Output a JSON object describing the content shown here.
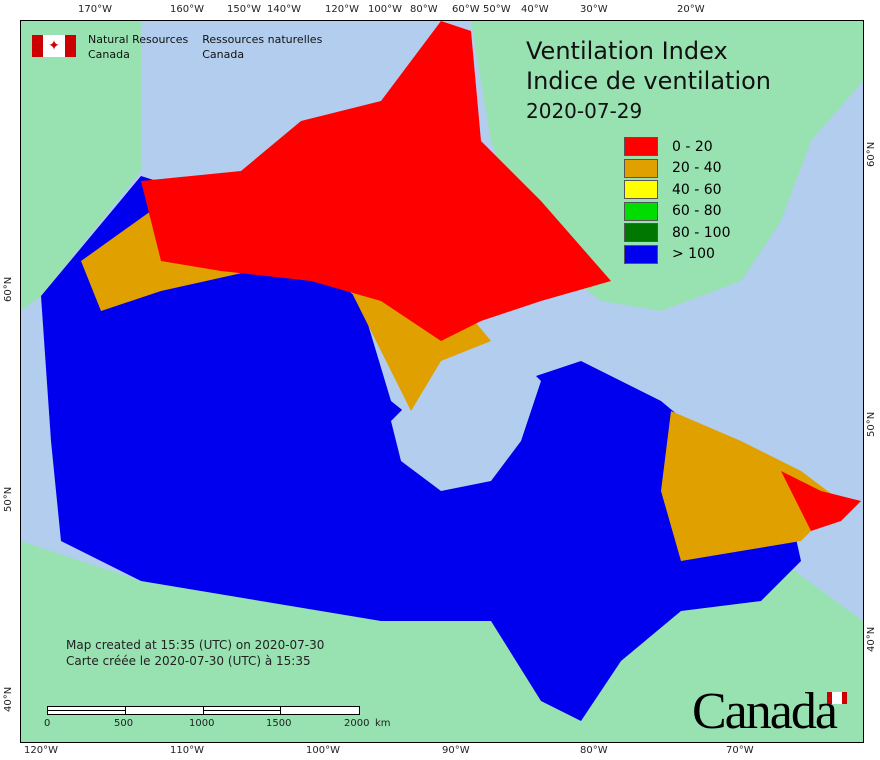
{
  "title": {
    "en": "Ventilation Index",
    "fr": "Indice de ventilation",
    "date": "2020-07-29"
  },
  "agency": {
    "en_line1": "Natural Resources",
    "en_line2": "Canada",
    "fr_line1": "Ressources naturelles",
    "fr_line2": "Canada"
  },
  "legend": [
    {
      "label": "0 - 20",
      "color": "#ff0000"
    },
    {
      "label": "20 - 40",
      "color": "#e0a000"
    },
    {
      "label": "40 - 60",
      "color": "#ffff00"
    },
    {
      "label": "60 - 80",
      "color": "#00dd00"
    },
    {
      "label": "80 - 100",
      "color": "#007700"
    },
    {
      "label": "> 100",
      "color": "#0000ee"
    }
  ],
  "top_ticks": [
    "170°W",
    "160°W",
    "150°W",
    "140°W",
    "120°W",
    "100°W",
    "80°W",
    "60°W",
    "50°W",
    "40°W",
    "30°W",
    "20°W"
  ],
  "bottom_ticks": [
    "120°W",
    "110°W",
    "100°W",
    "90°W",
    "80°W",
    "70°W"
  ],
  "left_ticks": [
    "60°N",
    "50°N",
    "40°N"
  ],
  "right_ticks": [
    "60°N",
    "50°N",
    "40°N"
  ],
  "created": {
    "en": "Map created at 15:35 (UTC) on 2020-07-30",
    "fr": "Carte créée le 2020-07-30 (UTC) à 15:35"
  },
  "scale": {
    "labels": [
      "0",
      "500",
      "1000",
      "1500",
      "2000"
    ],
    "unit": "km"
  },
  "wordmark": "Canada"
}
